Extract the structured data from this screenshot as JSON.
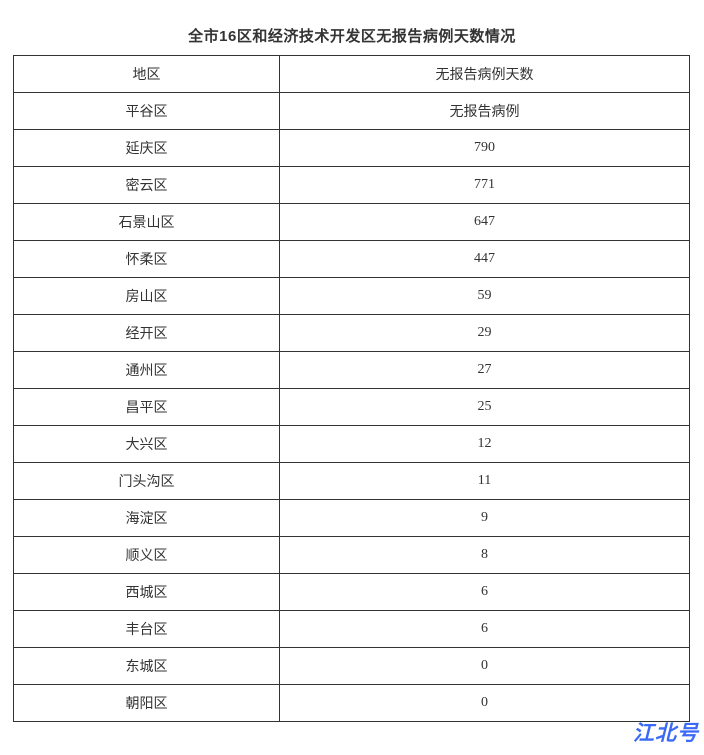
{
  "page": {
    "title": "全市16区和经济技术开发区无报告病例天数情况",
    "watermark": "江北号"
  },
  "colors": {
    "text": "#333333",
    "border": "#333333",
    "watermark_blue": "#3b6bf6",
    "background": "#ffffff"
  },
  "table": {
    "columns": [
      "地区",
      "无报告病例天数"
    ],
    "rows": [
      {
        "region": "平谷区",
        "days": "无报告病例"
      },
      {
        "region": "延庆区",
        "days": "790"
      },
      {
        "region": "密云区",
        "days": "771"
      },
      {
        "region": "石景山区",
        "days": "647"
      },
      {
        "region": "怀柔区",
        "days": "447"
      },
      {
        "region": "房山区",
        "days": "59"
      },
      {
        "region": "经开区",
        "days": "29"
      },
      {
        "region": "通州区",
        "days": "27"
      },
      {
        "region": "昌平区",
        "days": "25"
      },
      {
        "region": "大兴区",
        "days": "12"
      },
      {
        "region": "门头沟区",
        "days": "11"
      },
      {
        "region": "海淀区",
        "days": "9"
      },
      {
        "region": "顺义区",
        "days": "8"
      },
      {
        "region": "西城区",
        "days": "6"
      },
      {
        "region": "丰台区",
        "days": "6"
      },
      {
        "region": "东城区",
        "days": "0"
      },
      {
        "region": "朝阳区",
        "days": "0"
      }
    ]
  },
  "chart_data": {
    "type": "table",
    "title": "全市16区和经济技术开发区无报告病例天数情况",
    "columns": [
      "地区",
      "无报告病例天数"
    ],
    "rows": [
      [
        "平谷区",
        "无报告病例"
      ],
      [
        "延庆区",
        "790"
      ],
      [
        "密云区",
        "771"
      ],
      [
        "石景山区",
        "647"
      ],
      [
        "怀柔区",
        "447"
      ],
      [
        "房山区",
        "59"
      ],
      [
        "经开区",
        "29"
      ],
      [
        "通州区",
        "27"
      ],
      [
        "昌平区",
        "25"
      ],
      [
        "大兴区",
        "12"
      ],
      [
        "门头沟区",
        "11"
      ],
      [
        "海淀区",
        "9"
      ],
      [
        "顺义区",
        "8"
      ],
      [
        "西城区",
        "6"
      ],
      [
        "丰台区",
        "6"
      ],
      [
        "东城区",
        "0"
      ],
      [
        "朝阳区",
        "0"
      ]
    ]
  }
}
